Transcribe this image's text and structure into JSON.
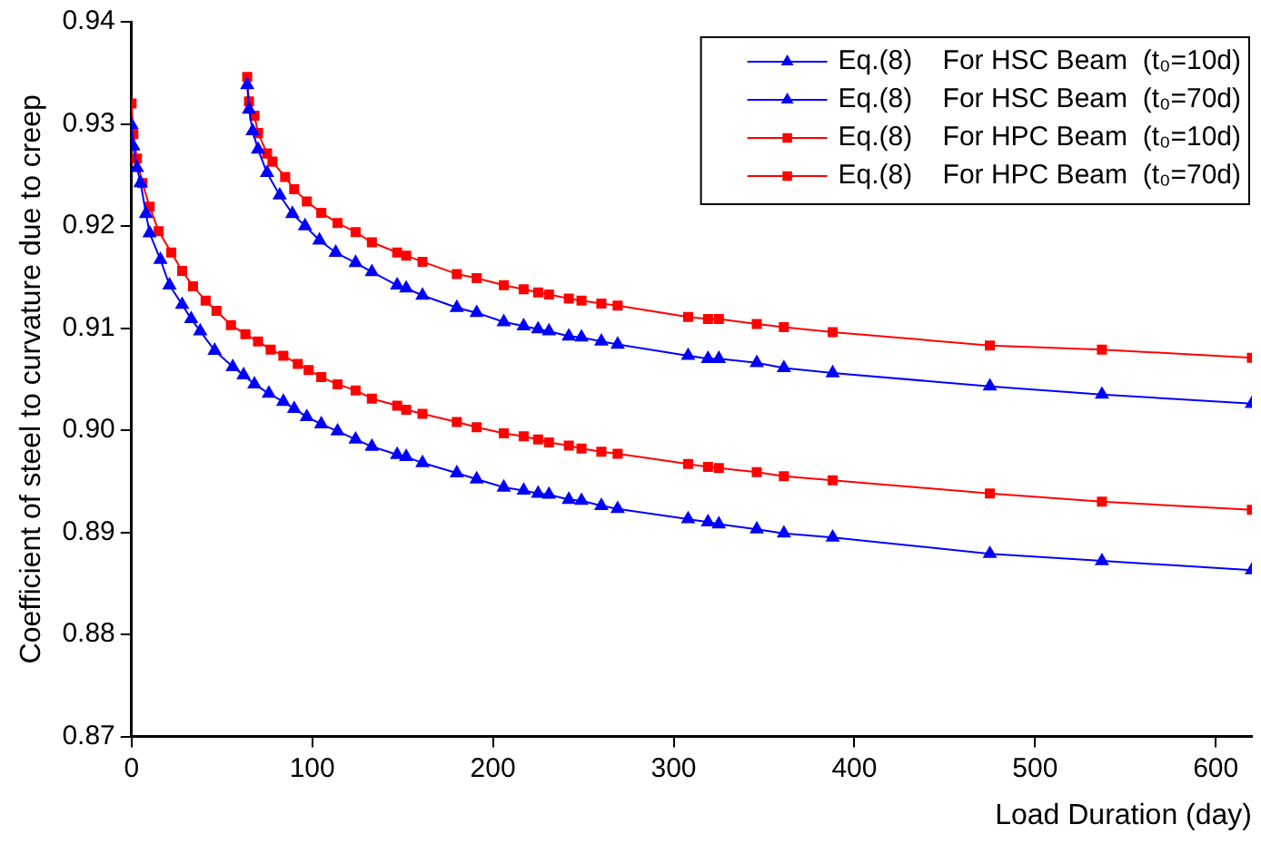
{
  "chart_data": {
    "type": "line",
    "xlabel": "Load Duration (day)",
    "ylabel": "Coefficient of steel to curvature due to creep",
    "xlim": [
      0,
      620
    ],
    "xticks": [
      0,
      100,
      200,
      300,
      400,
      500,
      600
    ],
    "ylim": [
      0.87,
      0.94
    ],
    "yticks": [
      0.87,
      0.88,
      0.89,
      {
        "value": 0.9,
        "label": "0.90"
      },
      0.91,
      0.92,
      0.93,
      0.94
    ],
    "grid": false,
    "legend": "top right",
    "line_style": "solid",
    "series": [
      {
        "name": "Eq.(8)    For HSC Beam  (t₀=10d)",
        "color": "#0000ff",
        "marker": "triangle",
        "x": [
          0,
          1,
          3,
          5,
          8,
          10,
          16,
          21,
          28,
          33,
          38,
          46,
          56,
          62,
          68,
          76,
          84,
          90,
          97,
          105,
          114,
          124,
          133,
          147,
          152,
          161,
          180,
          191,
          206,
          217,
          225,
          231,
          242,
          249,
          260,
          269,
          308,
          319,
          325,
          346,
          361,
          388,
          475,
          537,
          620
        ],
        "values": [
          0.9299,
          0.9278,
          0.9257,
          0.9242,
          0.9212,
          0.9193,
          0.9167,
          0.9142,
          0.9123,
          0.9109,
          0.9097,
          0.9078,
          0.9062,
          0.9054,
          0.9045,
          0.9036,
          0.9028,
          0.9021,
          0.9013,
          0.9006,
          0.8999,
          0.8991,
          0.8984,
          0.8976,
          0.8974,
          0.8968,
          0.8958,
          0.8952,
          0.8944,
          0.8941,
          0.8938,
          0.8937,
          0.8932,
          0.8931,
          0.8926,
          0.8923,
          0.8913,
          0.891,
          0.8908,
          0.8903,
          0.8899,
          0.8895,
          0.8879,
          0.8872,
          0.8863
        ]
      },
      {
        "name": "Eq.(8)    For HSC Beam  (t₀=70d)",
        "color": "#0000ff",
        "marker": "triangle",
        "x": [
          64,
          65,
          67,
          70,
          75,
          82,
          89,
          96,
          104,
          113,
          124,
          133,
          147,
          152,
          161,
          180,
          191,
          206,
          217,
          225,
          231,
          242,
          249,
          260,
          269,
          308,
          319,
          325,
          346,
          361,
          388,
          475,
          537,
          620
        ],
        "values": [
          0.9338,
          0.9314,
          0.9293,
          0.9275,
          0.9252,
          0.923,
          0.9212,
          0.92,
          0.9186,
          0.9174,
          0.9164,
          0.9155,
          0.9142,
          0.9139,
          0.9132,
          0.912,
          0.9115,
          0.9106,
          0.9102,
          0.9099,
          0.9097,
          0.9092,
          0.9091,
          0.9087,
          0.9084,
          0.9073,
          0.907,
          0.907,
          0.9066,
          0.9061,
          0.9056,
          0.9043,
          0.9035,
          0.9026
        ]
      },
      {
        "name": "Eq.(8)    For HPC Beam  (t₀=10d)",
        "color": "#ff0000",
        "marker": "square",
        "x": [
          0,
          1,
          3,
          6,
          10,
          15,
          22,
          28,
          34,
          41,
          47,
          55,
          63,
          70,
          77,
          84,
          92,
          98,
          105,
          114,
          124,
          133,
          147,
          152,
          161,
          180,
          191,
          206,
          217,
          225,
          231,
          242,
          249,
          260,
          269,
          308,
          319,
          325,
          346,
          361,
          388,
          475,
          537,
          620
        ],
        "values": [
          0.932,
          0.929,
          0.9266,
          0.9242,
          0.9219,
          0.9195,
          0.9174,
          0.9156,
          0.9141,
          0.9127,
          0.9117,
          0.9103,
          0.9094,
          0.9087,
          0.9079,
          0.9073,
          0.9065,
          0.9059,
          0.9052,
          0.9045,
          0.9039,
          0.9031,
          0.9024,
          0.902,
          0.9016,
          0.9008,
          0.9003,
          0.8997,
          0.8994,
          0.8991,
          0.8988,
          0.8985,
          0.8982,
          0.8979,
          0.8977,
          0.8967,
          0.8964,
          0.8963,
          0.8959,
          0.8955,
          0.8951,
          0.8938,
          0.893,
          0.8922
        ]
      },
      {
        "name": "Eq.(8)    For HPC Beam  (t₀=70d)",
        "color": "#ff0000",
        "marker": "square",
        "x": [
          64,
          65,
          68,
          70,
          75,
          78,
          85,
          90,
          97,
          105,
          114,
          124,
          133,
          147,
          152,
          161,
          180,
          191,
          206,
          217,
          225,
          231,
          242,
          249,
          260,
          269,
          308,
          319,
          325,
          346,
          361,
          388,
          475,
          537,
          620
        ],
        "values": [
          0.9346,
          0.9322,
          0.9308,
          0.9291,
          0.9271,
          0.9263,
          0.9248,
          0.9236,
          0.9224,
          0.9213,
          0.9203,
          0.9194,
          0.9184,
          0.9174,
          0.9171,
          0.9165,
          0.9153,
          0.9149,
          0.9142,
          0.9138,
          0.9135,
          0.9133,
          0.9129,
          0.9127,
          0.9124,
          0.9122,
          0.9111,
          0.9109,
          0.9109,
          0.9104,
          0.9101,
          0.9096,
          0.9083,
          0.9079,
          0.9071
        ]
      }
    ]
  }
}
